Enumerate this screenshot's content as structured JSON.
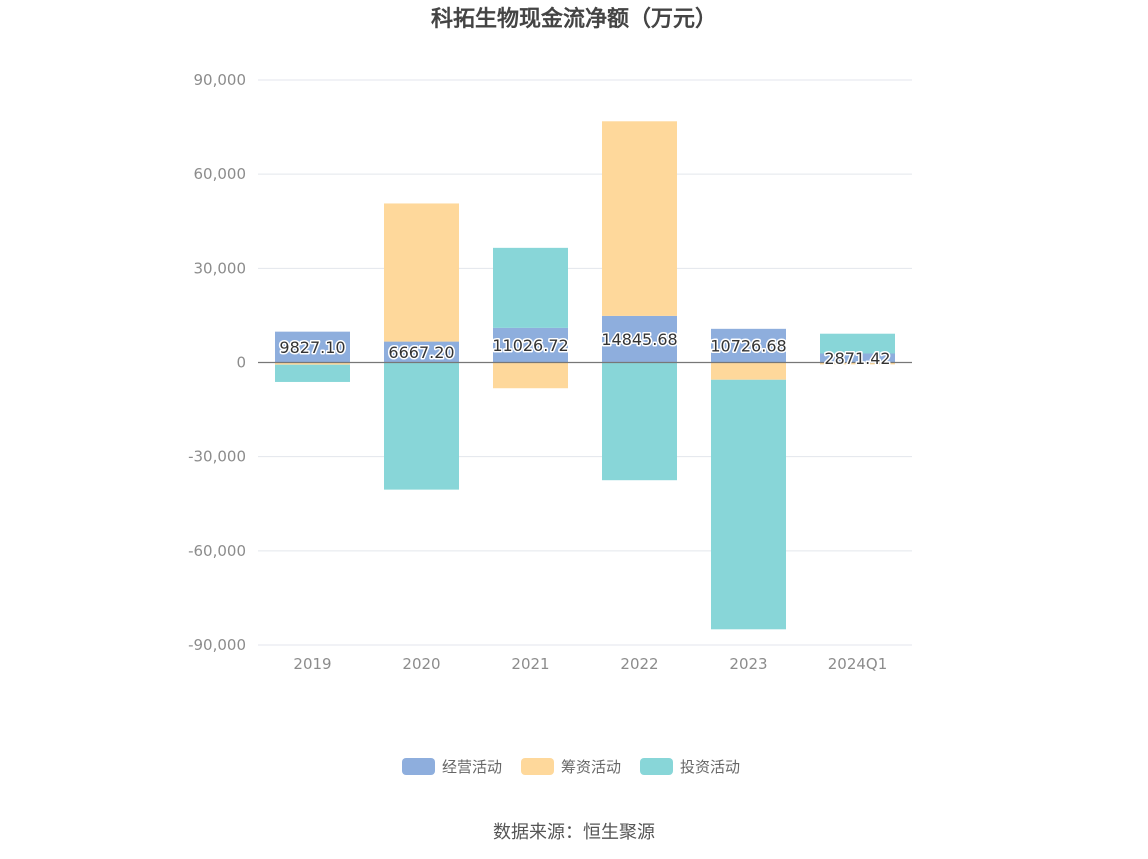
{
  "chart_data": {
    "type": "bar",
    "stacked": true,
    "title": "科拓生物现金流净额（万元）",
    "categories": [
      "2019",
      "2020",
      "2021",
      "2022",
      "2023",
      "2024Q1"
    ],
    "series": [
      {
        "name": "经营活动",
        "color": "#8eaedd",
        "values": [
          9827.1,
          6667.2,
          11026.72,
          14845.68,
          10726.68,
          2871.42
        ]
      },
      {
        "name": "筹资活动",
        "color": "#fed89b",
        "values": [
          -700,
          44000,
          -8200,
          62000,
          -5500,
          -600
        ]
      },
      {
        "name": "投资活动",
        "color": "#88d6d8",
        "values": [
          -5500,
          -40500,
          25500,
          -37500,
          -79500,
          6300
        ]
      }
    ],
    "data_labels": [
      "9827.10",
      "6667.20",
      "11026.72",
      "14845.68",
      "10726.68",
      "2871.42"
    ],
    "ylim": [
      -90000,
      90000
    ],
    "yticks": [
      90000,
      60000,
      30000,
      0,
      -30000,
      -60000,
      -90000
    ],
    "ytick_labels": [
      "90,000",
      "60,000",
      "30,000",
      "0",
      "-30,000",
      "-60,000",
      "-90,000"
    ],
    "grid": true,
    "legend_position": "bottom-center",
    "xlabel": "",
    "ylabel": ""
  },
  "source": "数据来源：恒生聚源"
}
